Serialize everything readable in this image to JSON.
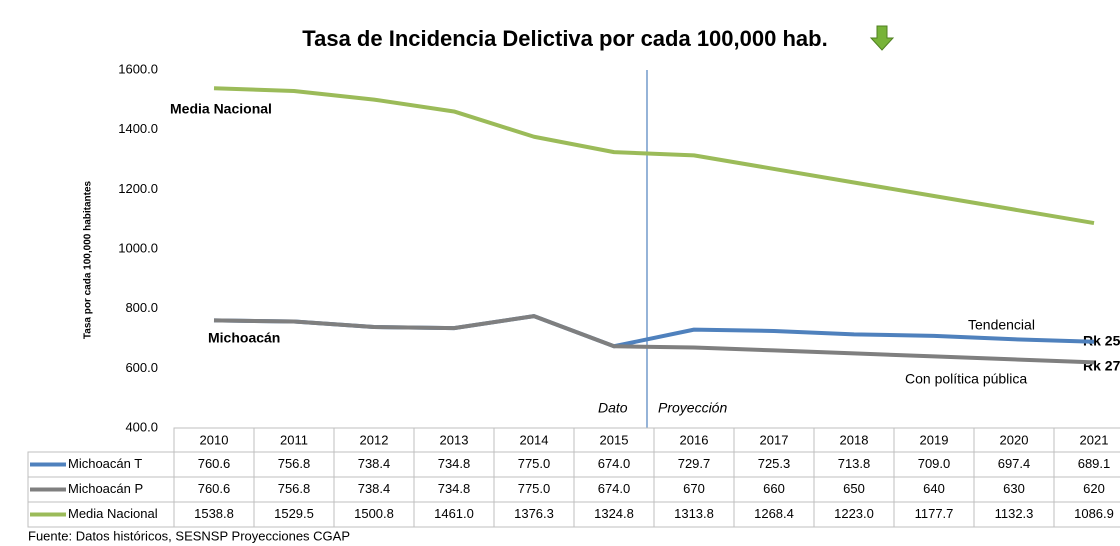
{
  "chart_data": {
    "type": "line",
    "title": "Tasa de Incidencia Delictiva por cada 100,000 hab.",
    "y_label": "Tasa por cada 100,000 habitantes",
    "source": "Fuente: Datos históricos, SESNSP Proyecciones CGAP",
    "annotations": [
      "Media Nacional",
      "Michoacán",
      "Tendencial",
      "Con política pública",
      "Rk 25",
      "Rk 27",
      "Dato",
      "Proyección"
    ],
    "categories": [
      "2010",
      "2011",
      "2012",
      "2013",
      "2014",
      "2015",
      "2016",
      "2017",
      "2018",
      "2019",
      "2020",
      "2021"
    ],
    "ylim": [
      400,
      1600
    ],
    "yticks": [
      {
        "value": 400,
        "label": "400.0"
      },
      {
        "value": 600,
        "label": "600.0"
      },
      {
        "value": 800,
        "label": "800.0"
      },
      {
        "value": 1000,
        "label": "1000.0"
      },
      {
        "value": 1200,
        "label": "1200.0"
      },
      {
        "value": 1400,
        "label": "1400.0"
      },
      {
        "value": 1600,
        "label": "1600.0"
      }
    ],
    "series": [
      {
        "name": "Michoacán T",
        "color": "#4f81bd",
        "values": [
          760.6,
          756.8,
          738.4,
          734.8,
          775.0,
          674.0,
          729.7,
          725.3,
          713.8,
          709.0,
          697.4,
          689.1
        ],
        "value_labels": [
          "760.6",
          "756.8",
          "738.4",
          "734.8",
          "775.0",
          "674.0",
          "729.7",
          "725.3",
          "713.8",
          "709.0",
          "697.4",
          "689.1"
        ]
      },
      {
        "name": "Michoacán P",
        "color": "#7f7f7f",
        "values": [
          760.6,
          756.8,
          738.4,
          734.8,
          775.0,
          674.0,
          670,
          660,
          650,
          640,
          630,
          620
        ],
        "value_labels": [
          "760.6",
          "756.8",
          "738.4",
          "734.8",
          "775.0",
          "674.0",
          "670",
          "660",
          "650",
          "640",
          "630",
          "620"
        ]
      },
      {
        "name": "Media Nacional",
        "color": "#9bbb59",
        "values": [
          1538.8,
          1529.5,
          1500.8,
          1461.0,
          1376.3,
          1324.8,
          1313.8,
          1268.4,
          1223.0,
          1177.7,
          1132.3,
          1086.9
        ],
        "value_labels": [
          "1538.8",
          "1529.5",
          "1500.8",
          "1461.0",
          "1376.3",
          "1324.8",
          "1313.8",
          "1268.4",
          "1223.0",
          "1177.7",
          "1132.3",
          "1086.9"
        ]
      }
    ]
  }
}
